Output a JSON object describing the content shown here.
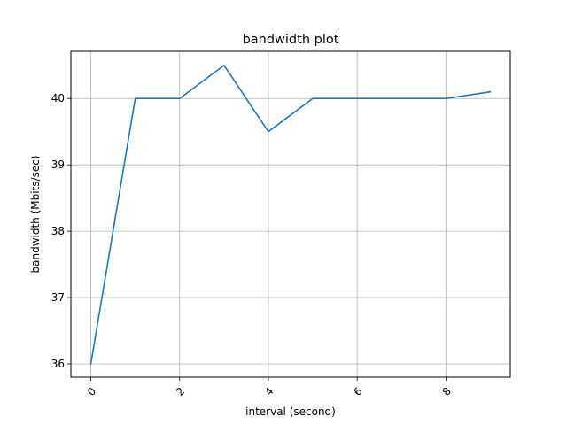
{
  "chart_data": {
    "type": "line",
    "title": "bandwidth plot",
    "xlabel": "interval (second)",
    "ylabel": "bandwidth (Mbits/sec)",
    "x": [
      0,
      1,
      2,
      3,
      4,
      5,
      6,
      7,
      8,
      9
    ],
    "series": [
      {
        "values": [
          36.0,
          40.0,
          40.0,
          40.5,
          39.5,
          40.0,
          40.0,
          40.0,
          40.0,
          40.1
        ],
        "color": "#1f77b4"
      }
    ],
    "xlim": [
      -0.45,
      9.45
    ],
    "ylim": [
      35.8,
      40.71
    ],
    "xticks": [
      0,
      2,
      4,
      6,
      8
    ],
    "xtick_labels": [
      "0",
      "2",
      "4",
      "6",
      "8"
    ],
    "xtick_rotation": "45 degrees, right aligned",
    "yticks": [
      36,
      37,
      38,
      39,
      40
    ],
    "ytick_labels": [
      "36",
      "37",
      "38",
      "39",
      "40"
    ],
    "grid": true,
    "grid_color": "#b0b0b0",
    "legend": false
  }
}
